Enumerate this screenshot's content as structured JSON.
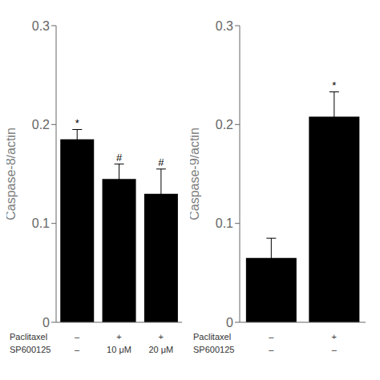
{
  "chart_data": [
    {
      "type": "bar",
      "x_rows": [
        {
          "label": "Paclitaxel",
          "values": [
            "–",
            "+",
            "+"
          ]
        },
        {
          "label": "SP600125",
          "values": [
            "–",
            "10 μM",
            "20 μM"
          ]
        }
      ],
      "values": [
        0.185,
        0.145,
        0.13
      ],
      "errors": [
        0.01,
        0.015,
        0.025
      ],
      "annotations": [
        "*",
        "#",
        "#"
      ],
      "ylabel": "Caspase-8/actin",
      "ylim": [
        0,
        0.3
      ],
      "yticks": [
        0,
        0.1,
        0.2,
        0.3
      ],
      "color": "#000000"
    },
    {
      "type": "bar",
      "x_rows": [
        {
          "label": "Paclitaxel",
          "values": [
            "–",
            "+"
          ]
        },
        {
          "label": "SP600125",
          "values": [
            "–",
            "–"
          ]
        }
      ],
      "values": [
        0.065,
        0.208
      ],
      "errors": [
        0.02,
        0.025
      ],
      "annotations": [
        null,
        "*"
      ],
      "ylabel": "Caspase-9/actin",
      "ylim": [
        0,
        0.3
      ],
      "yticks": [
        0,
        0.1,
        0.2,
        0.3
      ],
      "color": "#000000"
    }
  ]
}
